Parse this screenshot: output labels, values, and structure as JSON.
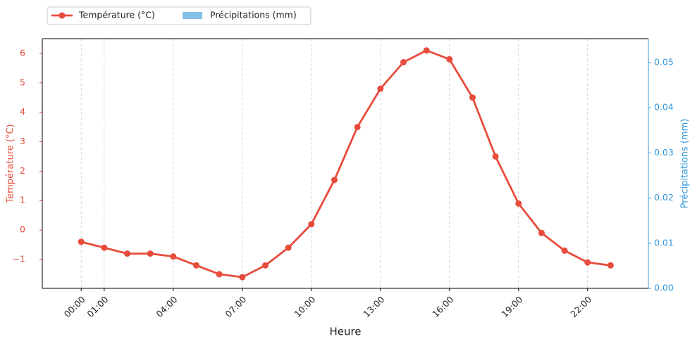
{
  "chart_data": {
    "type": "line",
    "x_label": "Heure",
    "y_label": "Température (°C)",
    "y2_label": "Précipitations (mm)",
    "categories": [
      "00:00",
      "01:00",
      null,
      null,
      "04:00",
      null,
      null,
      "07:00",
      null,
      null,
      "10:00",
      null,
      null,
      "13:00",
      null,
      null,
      "16:00",
      null,
      null,
      "19:00",
      null,
      null,
      "22:00",
      null
    ],
    "series": [
      {
        "name": "Température (°C)",
        "color": "#e74c3c",
        "axis": "y",
        "type": "line",
        "values": [
          -0.4,
          -0.6,
          -0.8,
          -0.8,
          -0.9,
          -1.2,
          -1.5,
          -1.6,
          -1.2,
          -0.6,
          0.2,
          1.7,
          3.5,
          4.8,
          5.7,
          6.1,
          5.8,
          4.5,
          2.5,
          0.9,
          -0.1,
          -0.7,
          -1.1,
          -1.2
        ]
      },
      {
        "name": "Précipitations (mm)",
        "color": "#85c1e9",
        "axis": "y2",
        "type": "bar",
        "values": [
          0,
          0,
          0,
          0,
          0,
          0,
          0,
          0,
          0,
          0,
          0,
          0,
          0,
          0,
          0,
          0,
          0,
          0,
          0,
          0,
          0,
          0,
          0,
          0
        ]
      }
    ],
    "ylim": [
      -1.98,
      6.5
    ],
    "yticks": [
      {
        "value": -1,
        "label": "−1"
      },
      0,
      1,
      2,
      3,
      4,
      5,
      6
    ],
    "y2lim": [
      0,
      0.0553
    ],
    "y2ticks": [
      {
        "value": 0,
        "label": "0.00"
      },
      0.01,
      0.02,
      0.03,
      0.04,
      0.05
    ],
    "grid": true,
    "legend": "top-left"
  }
}
